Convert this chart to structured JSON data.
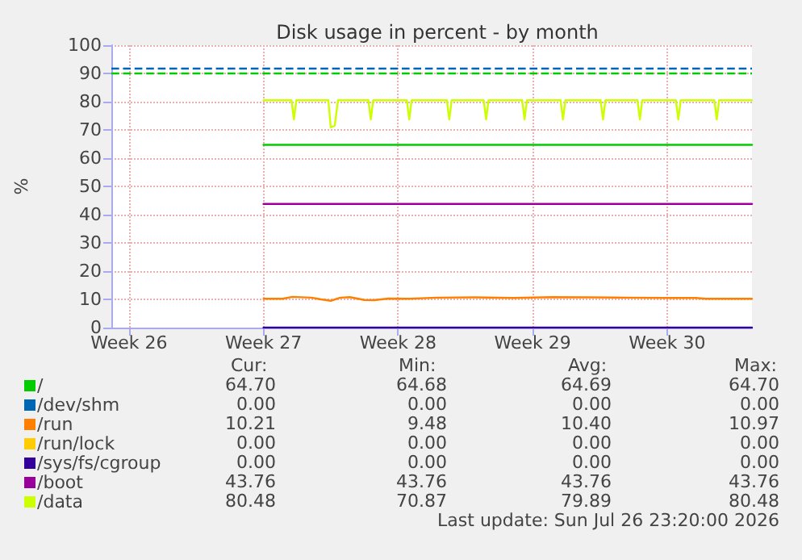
{
  "chart_data": {
    "type": "line",
    "title": "Disk usage in percent - by month",
    "ylabel": "%",
    "xlim": [
      "2026-06-21T02:00",
      "2026-07-24T10:00"
    ],
    "xticks": [
      {
        "value": "2026-06-22",
        "label": "Week 26"
      },
      {
        "value": "2026-06-29",
        "label": "Week 27"
      },
      {
        "value": "2026-07-06",
        "label": "Week 28"
      },
      {
        "value": "2026-07-13",
        "label": "Week 29"
      },
      {
        "value": "2026-07-20",
        "label": "Week 30"
      }
    ],
    "ylim": [
      0,
      100
    ],
    "yticks": [
      0,
      10,
      20,
      30,
      40,
      50,
      60,
      70,
      80,
      90,
      100
    ],
    "grid": true,
    "legend": "bottom left",
    "marker": "none",
    "line_style": "solid",
    "ref_lines": [
      {
        "axis": "y",
        "value": 92,
        "color": "#0066b3",
        "line_style": "dashed"
      },
      {
        "axis": "y",
        "value": 90,
        "color": "#00cc00",
        "line_style": "dashed"
      }
    ],
    "series": [
      {
        "name": "/",
        "color": "#00cc00",
        "x": [
          "2026-06-29",
          "2026-07-24T10:00"
        ],
        "values": [
          64.7,
          64.7
        ]
      },
      {
        "name": "/dev/shm",
        "color": "#0066b3"
      },
      {
        "name": "/run",
        "color": "#ff8000",
        "x": [
          "2026-06-29",
          "2026-06-30",
          "2026-06-30T12:00",
          "2026-07-01T12:00",
          "2026-07-02",
          "2026-07-02T12:00",
          "2026-07-03",
          "2026-07-03T12:00",
          "2026-07-04T06:00",
          "2026-07-04T18:00",
          "2026-07-05T12:00",
          "2026-07-06T12:00",
          "2026-07-08",
          "2026-07-10",
          "2026-07-12",
          "2026-07-14",
          "2026-07-16",
          "2026-07-18",
          "2026-07-20",
          "2026-07-21T12:00",
          "2026-07-22",
          "2026-07-24T10:00"
        ],
        "values": [
          10.2,
          10.2,
          10.9,
          10.6,
          10.0,
          9.5,
          10.6,
          10.8,
          9.8,
          9.7,
          10.3,
          10.2,
          10.6,
          10.7,
          10.5,
          10.8,
          10.7,
          10.6,
          10.5,
          10.5,
          10.2,
          10.2
        ]
      },
      {
        "name": "/run/lock",
        "color": "#ffcc00"
      },
      {
        "name": "/sys/fs/cgroup",
        "color": "#330099",
        "x": [
          "2026-06-29",
          "2026-07-24T10:00"
        ],
        "values": [
          0,
          0
        ]
      },
      {
        "name": "/boot",
        "color": "#990099",
        "x": [
          "2026-06-29",
          "2026-07-24T10:00"
        ],
        "values": [
          43.8,
          43.8
        ]
      },
      {
        "name": "/data",
        "color": "#ccff00",
        "x": [
          "2026-06-29",
          "2026-06-30T11:00",
          "2026-06-30T14:00",
          "2026-06-30T17:00",
          "2026-07-02T09:00",
          "2026-07-02T12:00",
          "2026-07-02T17:00",
          "2026-07-02T21:00",
          "2026-07-04T11:00",
          "2026-07-04T14:00",
          "2026-07-04T17:00",
          "2026-07-06T11:00",
          "2026-07-06T14:00",
          "2026-07-06T17:00",
          "2026-07-08T13:00",
          "2026-07-08T16:00",
          "2026-07-08T19:00",
          "2026-07-10T11:00",
          "2026-07-10T14:00",
          "2026-07-10T17:00",
          "2026-07-12T11:00",
          "2026-07-12T14:00",
          "2026-07-12T17:00",
          "2026-07-14T11:00",
          "2026-07-14T14:00",
          "2026-07-14T17:00",
          "2026-07-16T13:00",
          "2026-07-16T16:00",
          "2026-07-16T19:00",
          "2026-07-18T11:00",
          "2026-07-18T14:00",
          "2026-07-18T17:00",
          "2026-07-20T11:00",
          "2026-07-20T14:00",
          "2026-07-20T17:00",
          "2026-07-22T11:00",
          "2026-07-22T14:00",
          "2026-07-22T17:00",
          "2026-07-24T10:00"
        ],
        "values": [
          80.5,
          80.5,
          73.7,
          80.5,
          80.5,
          70.9,
          71.5,
          80.5,
          80.5,
          73.7,
          80.5,
          80.5,
          73.7,
          80.5,
          80.5,
          73.7,
          80.5,
          80.5,
          73.7,
          80.5,
          80.5,
          73.7,
          80.5,
          80.5,
          73.7,
          80.5,
          80.5,
          73.7,
          80.5,
          80.5,
          73.7,
          80.5,
          80.5,
          73.7,
          80.5,
          80.5,
          73.7,
          80.5,
          80.5
        ]
      }
    ],
    "annotations": [
      "Cur:",
      "Min:",
      "Avg:",
      "Max:",
      "64.70",
      "64.68",
      "64.69",
      "64.70",
      "0.00",
      "0.00",
      "0.00",
      "0.00",
      "10.21",
      "9.48",
      "10.40",
      "10.97",
      "0.00",
      "0.00",
      "0.00",
      "0.00",
      "0.00",
      "0.00",
      "0.00",
      "0.00",
      "43.76",
      "43.76",
      "43.76",
      "43.76",
      "80.48",
      "70.87",
      "79.89",
      "80.48",
      "Last update: Sun Jul 26 23:20:00 2026"
    ]
  }
}
